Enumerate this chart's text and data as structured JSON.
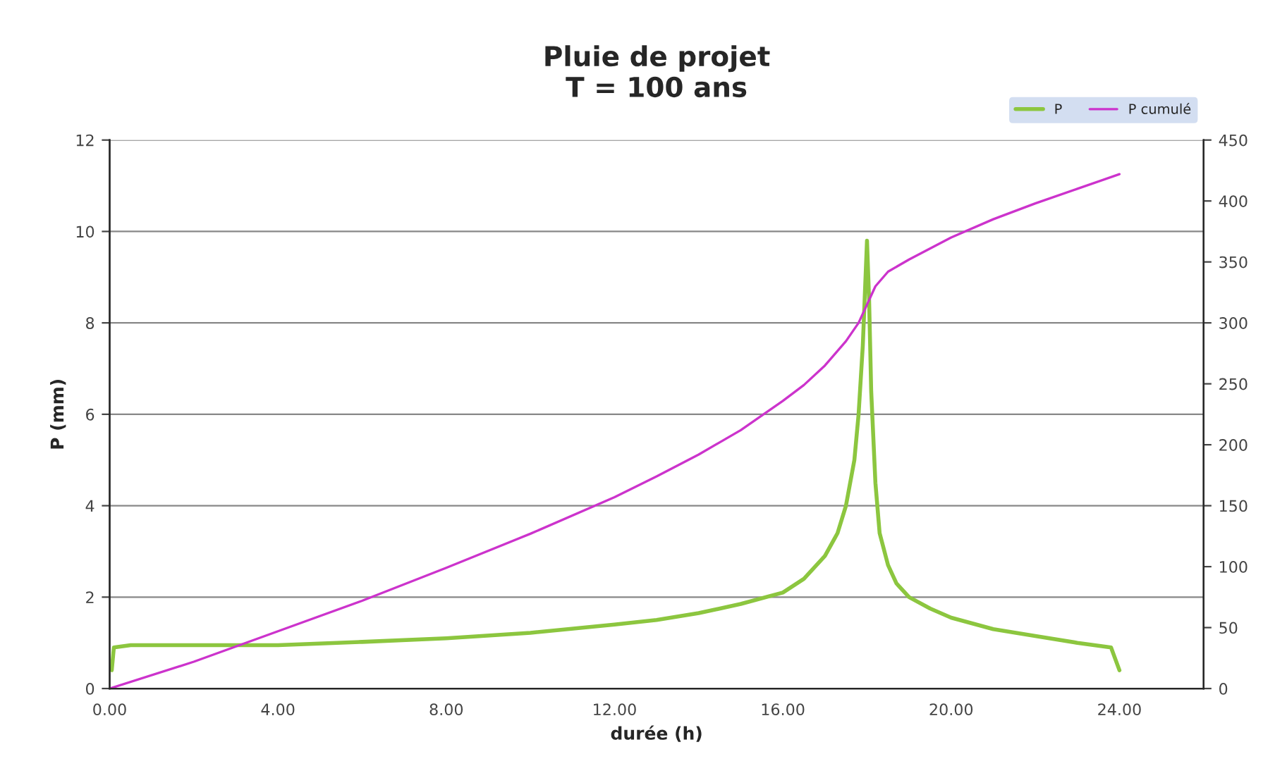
{
  "chart_data": {
    "type": "line",
    "title": "Pluie de projet\nT = 100 ans",
    "xlabel": "durée (h)",
    "ylabel": "P (mm)",
    "xlim": [
      0,
      26
    ],
    "xticks": [
      {
        "value": 0,
        "label": "0.00"
      },
      {
        "value": 4,
        "label": "4.00"
      },
      {
        "value": 8,
        "label": "8.00"
      },
      {
        "value": 12,
        "label": "12.00"
      },
      {
        "value": 16,
        "label": "16.00"
      },
      {
        "value": 20,
        "label": "20.00"
      },
      {
        "value": 24,
        "label": "24.00"
      }
    ],
    "ylim": [
      0,
      12
    ],
    "yticks": [
      0,
      2,
      4,
      6,
      8,
      10,
      12
    ],
    "y2lim": [
      0,
      450
    ],
    "y2ticks": [
      0,
      50,
      100,
      150,
      200,
      250,
      300,
      350,
      400,
      450
    ],
    "grid": "y",
    "legend": "top right",
    "marker": "none",
    "line_style": "solid",
    "series": [
      {
        "name": "P",
        "color": "#8cc63f",
        "x": [
          0.05,
          0.1,
          0.5,
          2,
          4,
          6,
          8,
          10,
          12,
          13,
          14,
          15,
          16,
          16.5,
          17,
          17.3,
          17.5,
          17.7,
          17.8,
          17.9,
          18.0,
          18.05,
          18.1,
          18.2,
          18.3,
          18.5,
          18.7,
          19,
          19.5,
          20,
          21,
          22,
          23,
          23.8,
          24
        ],
        "values": [
          0.4,
          0.9,
          0.95,
          0.95,
          0.95,
          1.02,
          1.1,
          1.22,
          1.4,
          1.5,
          1.65,
          1.85,
          2.1,
          2.4,
          2.9,
          3.4,
          4.0,
          5.0,
          6.0,
          7.5,
          9.8,
          8.5,
          6.5,
          4.5,
          3.4,
          2.7,
          2.3,
          2.0,
          1.75,
          1.55,
          1.3,
          1.15,
          1.0,
          0.9,
          0.4
        ]
      },
      {
        "name": "P cumulé",
        "color": "#cc33cc",
        "axis": "y2",
        "x": [
          0,
          2,
          4,
          6,
          8,
          10,
          12,
          13,
          14,
          15,
          16,
          16.5,
          17,
          17.5,
          17.8,
          18.0,
          18.2,
          18.5,
          19,
          20,
          21,
          22,
          23,
          24
        ],
        "values": [
          0,
          22,
          47,
          72,
          99,
          127,
          157,
          174,
          192,
          212,
          236,
          249,
          265,
          285,
          300,
          315,
          330,
          342,
          352,
          370,
          385,
          398,
          410,
          422
        ]
      }
    ]
  }
}
